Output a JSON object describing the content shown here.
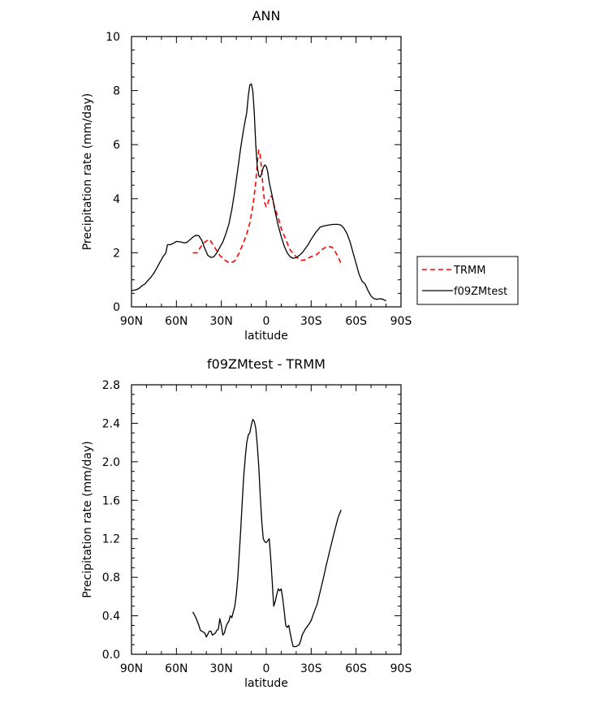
{
  "chart_data": [
    {
      "type": "line",
      "title": "ANN",
      "xlabel": "latitude",
      "ylabel": "Precipitation rate (mm/day)",
      "xlim": [
        90,
        -90
      ],
      "ylim": [
        0,
        10
      ],
      "xticks": [
        {
          "value": 90,
          "label": "90N"
        },
        {
          "value": 60,
          "label": "60N"
        },
        {
          "value": 30,
          "label": "30N"
        },
        {
          "value": 0,
          "label": "0"
        },
        {
          "value": -30,
          "label": "30S"
        },
        {
          "value": -60,
          "label": "60S"
        },
        {
          "value": -90,
          "label": "90S"
        }
      ],
      "yticks": [
        {
          "value": 0,
          "label": "0"
        },
        {
          "value": 2,
          "label": "2"
        },
        {
          "value": 4,
          "label": "4"
        },
        {
          "value": 6,
          "label": "6"
        },
        {
          "value": 8,
          "label": "8"
        },
        {
          "value": 10,
          "label": "10"
        }
      ],
      "legend": {
        "placement": "right-outside"
      },
      "series": [
        {
          "name": "TRMM",
          "color": "#ff0000",
          "dash": "dashed",
          "points": [
            [
              49,
              2.0
            ],
            [
              46,
              2.0
            ],
            [
              44,
              2.2
            ],
            [
              41,
              2.4
            ],
            [
              38,
              2.5
            ],
            [
              35,
              2.25
            ],
            [
              31,
              1.9
            ],
            [
              27,
              1.7
            ],
            [
              24,
              1.62
            ],
            [
              21,
              1.7
            ],
            [
              18,
              2.0
            ],
            [
              15,
              2.4
            ],
            [
              13,
              2.7
            ],
            [
              11,
              3.1
            ],
            [
              9,
              3.7
            ],
            [
              7,
              4.6
            ],
            [
              6,
              5.3
            ],
            [
              5,
              5.8
            ],
            [
              4,
              5.6
            ],
            [
              3,
              5.0
            ],
            [
              2,
              4.3
            ],
            [
              1,
              3.85
            ],
            [
              0,
              3.7
            ],
            [
              -1,
              3.8
            ],
            [
              -2,
              4.0
            ],
            [
              -3,
              4.1
            ],
            [
              -4,
              4.05
            ],
            [
              -5,
              3.8
            ],
            [
              -6,
              3.6
            ],
            [
              -8,
              3.3
            ],
            [
              -10,
              2.9
            ],
            [
              -13,
              2.5
            ],
            [
              -16,
              2.1
            ],
            [
              -20,
              1.85
            ],
            [
              -23,
              1.72
            ],
            [
              -26,
              1.74
            ],
            [
              -30,
              1.86
            ],
            [
              -33,
              1.9
            ],
            [
              -35,
              2.0
            ],
            [
              -38,
              2.15
            ],
            [
              -41,
              2.25
            ],
            [
              -44,
              2.2
            ],
            [
              -46,
              2.05
            ],
            [
              -48,
              1.85
            ],
            [
              -50,
              1.6
            ]
          ]
        },
        {
          "name": "f09ZMtest",
          "color": "#000000",
          "dash": "solid",
          "points": [
            [
              90,
              0.6
            ],
            [
              87,
              0.63
            ],
            [
              85,
              0.68
            ],
            [
              83,
              0.78
            ],
            [
              81,
              0.85
            ],
            [
              79,
              0.98
            ],
            [
              77,
              1.1
            ],
            [
              75,
              1.25
            ],
            [
              73,
              1.45
            ],
            [
              71,
              1.65
            ],
            [
              69,
              1.85
            ],
            [
              67,
              2.0
            ],
            [
              66,
              2.3
            ],
            [
              64,
              2.3
            ],
            [
              62,
              2.35
            ],
            [
              60,
              2.42
            ],
            [
              57,
              2.4
            ],
            [
              55,
              2.37
            ],
            [
              53,
              2.38
            ],
            [
              51,
              2.48
            ],
            [
              49,
              2.58
            ],
            [
              47,
              2.65
            ],
            [
              45,
              2.63
            ],
            [
              43,
              2.45
            ],
            [
              41,
              2.15
            ],
            [
              39,
              1.9
            ],
            [
              37,
              1.83
            ],
            [
              35,
              1.85
            ],
            [
              33,
              2.0
            ],
            [
              31,
              2.2
            ],
            [
              29,
              2.4
            ],
            [
              27,
              2.7
            ],
            [
              25,
              3.05
            ],
            [
              23,
              3.6
            ],
            [
              21,
              4.3
            ],
            [
              19,
              5.1
            ],
            [
              17,
              5.9
            ],
            [
              15,
              6.6
            ],
            [
              13,
              7.2
            ],
            [
              12,
              7.8
            ],
            [
              11,
              8.2
            ],
            [
              10,
              8.25
            ],
            [
              9,
              8.0
            ],
            [
              8,
              7.2
            ],
            [
              7,
              6.0
            ],
            [
              6,
              5.2
            ],
            [
              5,
              4.85
            ],
            [
              4,
              4.8
            ],
            [
              3,
              4.95
            ],
            [
              2,
              5.15
            ],
            [
              1,
              5.25
            ],
            [
              0,
              5.2
            ],
            [
              -1,
              5.0
            ],
            [
              -2,
              4.6
            ],
            [
              -4,
              4.1
            ],
            [
              -6,
              3.5
            ],
            [
              -8,
              3.0
            ],
            [
              -10,
              2.6
            ],
            [
              -12,
              2.25
            ],
            [
              -14,
              2.0
            ],
            [
              -16,
              1.85
            ],
            [
              -18,
              1.8
            ],
            [
              -20,
              1.82
            ],
            [
              -22,
              1.9
            ],
            [
              -24,
              2.0
            ],
            [
              -26,
              2.15
            ],
            [
              -28,
              2.3
            ],
            [
              -30,
              2.5
            ],
            [
              -33,
              2.75
            ],
            [
              -36,
              2.95
            ],
            [
              -39,
              3.0
            ],
            [
              -42,
              3.03
            ],
            [
              -45,
              3.05
            ],
            [
              -48,
              3.05
            ],
            [
              -50,
              3.02
            ],
            [
              -52,
              2.9
            ],
            [
              -54,
              2.7
            ],
            [
              -56,
              2.4
            ],
            [
              -58,
              2.0
            ],
            [
              -60,
              1.6
            ],
            [
              -62,
              1.2
            ],
            [
              -64,
              0.95
            ],
            [
              -66,
              0.85
            ],
            [
              -68,
              0.6
            ],
            [
              -70,
              0.4
            ],
            [
              -72,
              0.3
            ],
            [
              -74,
              0.28
            ],
            [
              -76,
              0.3
            ],
            [
              -78,
              0.28
            ],
            [
              -80,
              0.22
            ]
          ]
        }
      ]
    },
    {
      "type": "line",
      "title": "f09ZMtest - TRMM",
      "xlabel": "latitude",
      "ylabel": "Precipitation rate (mm/day)",
      "xlim": [
        90,
        -90
      ],
      "ylim": [
        0,
        2.8
      ],
      "xticks": [
        {
          "value": 90,
          "label": "90N"
        },
        {
          "value": 60,
          "label": "60N"
        },
        {
          "value": 30,
          "label": "30N"
        },
        {
          "value": 0,
          "label": "0"
        },
        {
          "value": -30,
          "label": "30S"
        },
        {
          "value": -60,
          "label": "60S"
        },
        {
          "value": -90,
          "label": "90S"
        }
      ],
      "yticks": [
        {
          "value": 0,
          "label": "0.0"
        },
        {
          "value": 0.4,
          "label": "0.4"
        },
        {
          "value": 0.8,
          "label": "0.8"
        },
        {
          "value": 1.2,
          "label": "1.2"
        },
        {
          "value": 1.6,
          "label": "1.6"
        },
        {
          "value": 2.0,
          "label": "2.0"
        },
        {
          "value": 2.4,
          "label": "2.4"
        },
        {
          "value": 2.8,
          "label": "2.8"
        }
      ],
      "series": [
        {
          "color": "#000000",
          "dash": "solid",
          "points": [
            [
              49,
              0.44
            ],
            [
              47,
              0.38
            ],
            [
              45,
              0.3
            ],
            [
              44,
              0.25
            ],
            [
              43,
              0.24
            ],
            [
              41,
              0.22
            ],
            [
              40,
              0.18
            ],
            [
              38,
              0.24
            ],
            [
              37,
              0.24
            ],
            [
              36,
              0.2
            ],
            [
              34,
              0.22
            ],
            [
              33,
              0.25
            ],
            [
              32,
              0.26
            ],
            [
              31,
              0.37
            ],
            [
              30,
              0.3
            ],
            [
              29,
              0.2
            ],
            [
              28,
              0.22
            ],
            [
              27,
              0.28
            ],
            [
              26,
              0.32
            ],
            [
              25,
              0.34
            ],
            [
              24,
              0.4
            ],
            [
              23,
              0.38
            ],
            [
              22,
              0.44
            ],
            [
              21,
              0.5
            ],
            [
              20,
              0.62
            ],
            [
              19,
              0.8
            ],
            [
              18,
              1.05
            ],
            [
              17,
              1.3
            ],
            [
              16,
              1.6
            ],
            [
              15,
              1.85
            ],
            [
              14,
              2.05
            ],
            [
              13,
              2.2
            ],
            [
              12,
              2.28
            ],
            [
              11,
              2.3
            ],
            [
              10,
              2.38
            ],
            [
              9,
              2.44
            ],
            [
              8,
              2.42
            ],
            [
              7,
              2.35
            ],
            [
              6,
              2.18
            ],
            [
              5,
              1.95
            ],
            [
              4,
              1.65
            ],
            [
              3,
              1.38
            ],
            [
              2,
              1.2
            ],
            [
              1,
              1.17
            ],
            [
              0,
              1.16
            ],
            [
              -1,
              1.18
            ],
            [
              -2,
              1.2
            ],
            [
              -3,
              1.0
            ],
            [
              -4,
              0.75
            ],
            [
              -5,
              0.5
            ],
            [
              -6,
              0.55
            ],
            [
              -7,
              0.62
            ],
            [
              -8,
              0.68
            ],
            [
              -9,
              0.66
            ],
            [
              -10,
              0.68
            ],
            [
              -11,
              0.58
            ],
            [
              -12,
              0.45
            ],
            [
              -13,
              0.3
            ],
            [
              -14,
              0.28
            ],
            [
              -15,
              0.3
            ],
            [
              -16,
              0.22
            ],
            [
              -17,
              0.14
            ],
            [
              -18,
              0.08
            ],
            [
              -20,
              0.08
            ],
            [
              -22,
              0.1
            ],
            [
              -23,
              0.14
            ],
            [
              -24,
              0.2
            ],
            [
              -26,
              0.26
            ],
            [
              -28,
              0.3
            ],
            [
              -30,
              0.35
            ],
            [
              -32,
              0.44
            ],
            [
              -34,
              0.52
            ],
            [
              -36,
              0.65
            ],
            [
              -38,
              0.78
            ],
            [
              -40,
              0.92
            ],
            [
              -42,
              1.05
            ],
            [
              -44,
              1.18
            ],
            [
              -46,
              1.3
            ],
            [
              -48,
              1.42
            ],
            [
              -50,
              1.5
            ]
          ]
        }
      ]
    }
  ]
}
